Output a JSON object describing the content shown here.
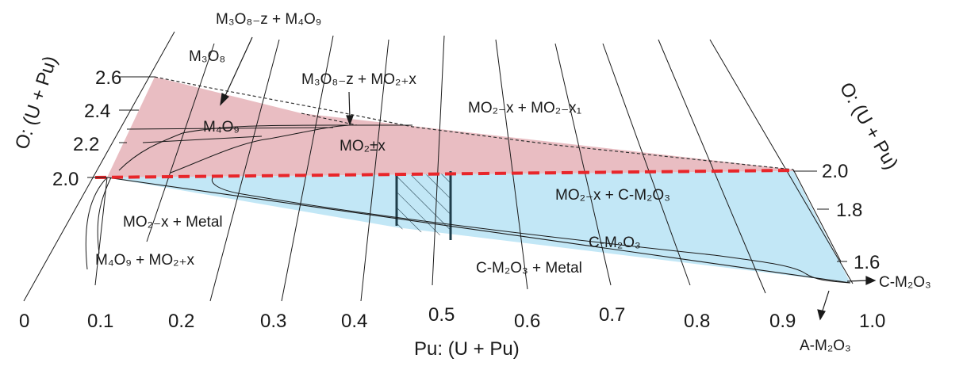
{
  "axes": {
    "x_title": "Pu: (U + Pu)",
    "y_left_title": "O: (U + Pu)",
    "y_right_title": "O: (U + Pu)",
    "x_ticks": [
      "0",
      "0.1",
      "0.2",
      "0.3",
      "0.4",
      "0.5",
      "0.6",
      "0.7",
      "0.8",
      "0.9",
      "1.0"
    ],
    "left_ticks": [
      "2.6",
      "2.4",
      "2.2",
      "2.0"
    ],
    "right_ticks": [
      "2.0",
      "1.8",
      "1.6"
    ]
  },
  "labels": {
    "m3o8": "M₃O₈",
    "m3o8z_m4o9": "M₃O₈₋z + M₄O₉",
    "m3o8z_mo2x": "M₃O₈₋z + MO₂₊x",
    "m4o9": "M₄O₉",
    "mo2pm": "MO₂±x",
    "mo2x_mo2x1": "MO₂₋x + MO₂₋x₁",
    "mo2x_cm2o3": "MO₂₋x + C-M₂O₃",
    "cm2o3": "C-M₂O₃",
    "mo2x_metal": "MO₂₋x + Metal",
    "m4o9_mo2x": "M₄O₉ + MO₂₊x",
    "cm2o3_metal": "C-M₂O₃ + Metal",
    "cm2o3_arrow": "C-M₂O₃",
    "am2o3_arrow": "A-M₂O₃"
  },
  "colors": {
    "hyper_region": "#e8b9bf",
    "hypo_region": "#bfe6f5",
    "stoich_line": "#e8262a",
    "lines": "#1a1a1a",
    "hatch_bars": "#1f3d4a"
  }
}
